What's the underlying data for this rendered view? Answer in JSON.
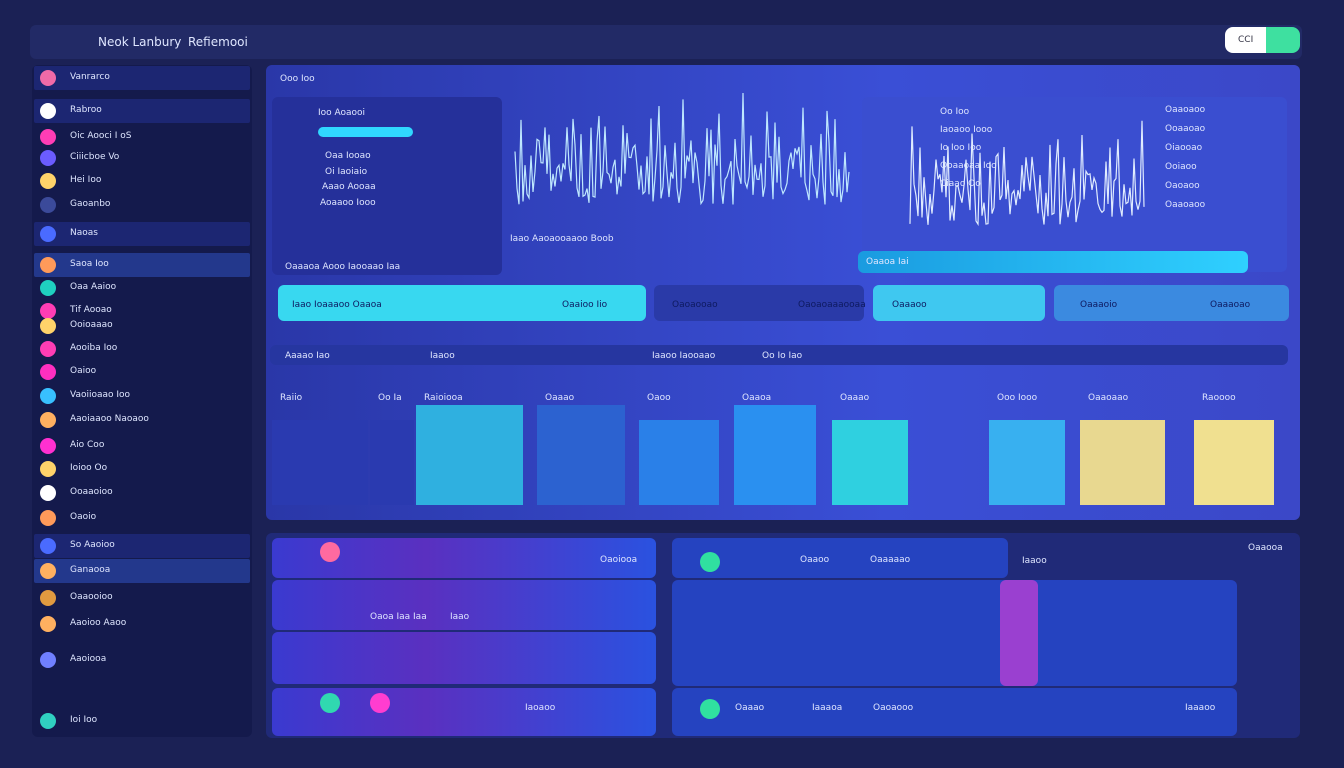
{
  "header": {
    "brand": "Neok Lanbury",
    "title": "Refiemooi",
    "button": "CCI"
  },
  "sidebar": {
    "items": [
      "Vanrarco",
      "Rabroo",
      "Oic Aooci I oS",
      "Ciiicboe Vo",
      "Hei Ioo",
      "Gaoanbo",
      "Naoas",
      "Saoa Ioo",
      "Oaa Aaioo",
      "Tif Aooao",
      "Ooioaaao",
      "Aooiba Ioo",
      "Oaioo",
      "Vaoiioaao Ioo",
      "Aaoiaaoo Naoaoo",
      "Aio Coo",
      "Ioioo Oo",
      "Ooaaoioo",
      "Oaoio",
      "So Aaoioo",
      "Ganaooa",
      "Oaaooioo",
      "Aaoioo Aaoo",
      "Aaoiooa",
      "Ioi Ioo"
    ]
  },
  "top_panel": {
    "title": "Ooo Ioo",
    "stats_title": "Ioo Aoaooi",
    "stats": [
      "Oaa Iooao",
      "Oi Iaoiaio",
      "Aaao Aooaa",
      "Aoaaoo Iooo"
    ],
    "wave_caption": "Iaao Aaoaooaaoo Boob",
    "stats_footer": "Oaaaoa Aooo Iaooaao Iaa",
    "right_list": [
      "Oo Ioo",
      "Iaoaoo Iooo",
      "Io Ioo Ioo",
      "Ooaaoaa Ioo",
      "Ciaao Oo"
    ],
    "right_values": [
      "Oaaoaoo",
      "Ooaaoao",
      "Oiaooao",
      "Ooiaoo",
      "Oaoaoo",
      "Oaaoaoo"
    ],
    "progress_label": "Oaaoa Iai",
    "buttons": [
      "Iaao Ioaaaoo Oaaoa",
      "Oaaioo Iio",
      "Oaoaooao",
      "Oaoaoaaaooaa",
      "Oaaaoo",
      "Oaaaoio",
      "Oaaaoao"
    ],
    "table_headers": [
      "Aaaao Iao",
      "Iaaoo",
      "Iaaoo Iaooaao",
      "Oo Io Iao"
    ],
    "columns": [
      "Raiio",
      "Oo Ia",
      "Raioiooa",
      "Oaaao",
      "Oaoo",
      "Oaaoa",
      "Oaaao",
      "Ooo Iooo",
      "Oaaoaao",
      "Raoooo"
    ]
  },
  "bottom_panel": {
    "left_rows": [
      "Oaoiooa",
      "Oaoa Iaa Iaa",
      "Iaao",
      "Iaoaoo"
    ],
    "middle_rows": [
      "Oaaoo",
      "Oaaaaao",
      "Oaaao",
      "Iaaaoa",
      "Oaoaooo",
      "Iaaaoo"
    ],
    "right_label": "Iaaoo",
    "far_right": "Oaaooa"
  }
}
